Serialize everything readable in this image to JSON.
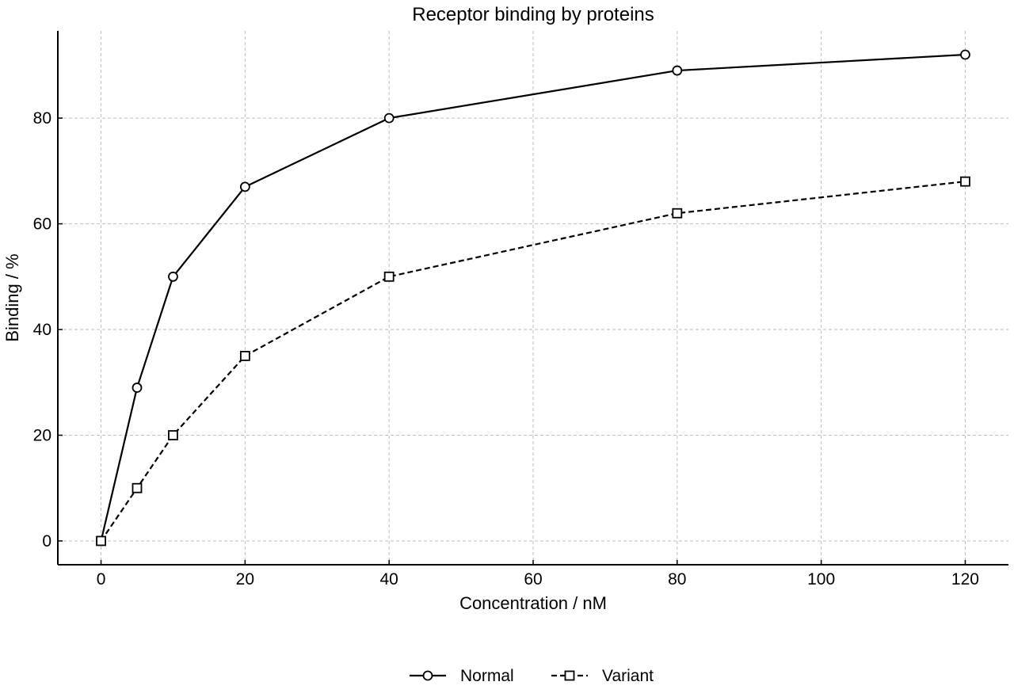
{
  "chart_data": {
    "type": "line",
    "title": "Receptor binding by proteins",
    "xlabel": "Concentration / nM",
    "ylabel": "Binding / %",
    "xlim": [
      -6,
      126
    ],
    "ylim": [
      -4.5,
      96.5
    ],
    "xticks": [
      0,
      20,
      40,
      60,
      80,
      100,
      120
    ],
    "yticks": [
      0,
      20,
      40,
      60,
      80
    ],
    "grid": true,
    "legend_position": "bottom-center",
    "series": [
      {
        "name": "Normal",
        "marker": "circle",
        "line_style": "solid",
        "color": "#000000",
        "x": [
          0,
          5,
          10,
          20,
          40,
          80,
          120
        ],
        "y": [
          0,
          29,
          50,
          67,
          80,
          89,
          92
        ]
      },
      {
        "name": "Variant",
        "marker": "square",
        "line_style": "dashed",
        "color": "#000000",
        "x": [
          0,
          5,
          10,
          20,
          40,
          80,
          120
        ],
        "y": [
          0,
          10,
          20,
          35,
          50,
          62,
          68
        ]
      }
    ]
  }
}
